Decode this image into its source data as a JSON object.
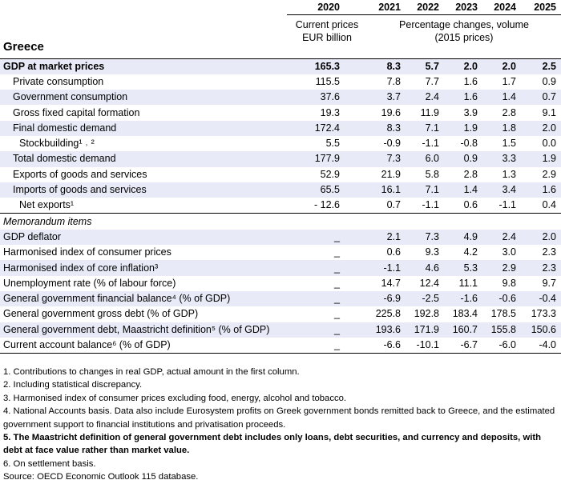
{
  "title": "Greece",
  "years": [
    "2020",
    "2021",
    "2022",
    "2023",
    "2024",
    "2025"
  ],
  "header": {
    "current_prices": "Current prices EUR billion",
    "pct_changes": "Percentage changes, volume (2015 prices)"
  },
  "rows": [
    {
      "label": "GDP at market prices",
      "values": [
        "165.3",
        "8.3",
        "5.7",
        "2.0",
        "2.0",
        "2.5"
      ]
    },
    {
      "label": "Private consumption",
      "values": [
        "115.5",
        "7.8",
        "7.7",
        "1.6",
        "1.7",
        "0.9"
      ]
    },
    {
      "label": "Government consumption",
      "values": [
        "37.6",
        "3.7",
        "2.4",
        "1.6",
        "1.4",
        "0.7"
      ]
    },
    {
      "label": "Gross fixed capital formation",
      "values": [
        "19.3",
        "19.6",
        "11.9",
        "3.9",
        "2.8",
        "9.1"
      ]
    },
    {
      "label": "Final domestic demand",
      "values": [
        "172.4",
        "8.3",
        "7.1",
        "1.9",
        "1.8",
        "2.0"
      ]
    },
    {
      "label": "Stockbuilding¹ ˒ ²",
      "values": [
        "5.5",
        "-0.9",
        "-1.1",
        "-0.8",
        "1.5",
        "0.0"
      ]
    },
    {
      "label": "Total domestic demand",
      "values": [
        "177.9",
        "7.3",
        "6.0",
        "0.9",
        "3.3",
        "1.9"
      ]
    },
    {
      "label": "Exports of goods and services",
      "values": [
        "52.9",
        "21.9",
        "5.8",
        "2.8",
        "1.3",
        "2.9"
      ]
    },
    {
      "label": "Imports of goods and services",
      "values": [
        "65.5",
        "16.1",
        "7.1",
        "1.4",
        "3.4",
        "1.6"
      ]
    },
    {
      "label": "Net exports¹",
      "values": [
        "- 12.6",
        "0.7",
        "-1.1",
        "0.6",
        "-1.1",
        "0.4"
      ]
    }
  ],
  "memo_label": "Memorandum items",
  "memo_rows": [
    {
      "label": "GDP deflator",
      "values": [
        "_",
        "2.1",
        "7.3",
        "4.9",
        "2.4",
        "2.0"
      ]
    },
    {
      "label": "Harmonised index of consumer prices",
      "values": [
        "_",
        "0.6",
        "9.3",
        "4.2",
        "3.0",
        "2.3"
      ]
    },
    {
      "label": "Harmonised index of core inflation³",
      "values": [
        "_",
        "-1.1",
        "4.6",
        "5.3",
        "2.9",
        "2.3"
      ]
    },
    {
      "label": "Unemployment rate (% of labour force)",
      "values": [
        "_",
        "14.7",
        "12.4",
        "11.1",
        "9.8",
        "9.7"
      ]
    },
    {
      "label": "General government financial balance⁴ (% of GDP)",
      "values": [
        "_",
        "-6.9",
        "-2.5",
        "-1.6",
        "-0.6",
        "-0.4"
      ]
    },
    {
      "label": "General government gross debt (% of GDP)",
      "values": [
        "_",
        "225.8",
        "192.8",
        "183.4",
        "178.5",
        "173.3"
      ]
    },
    {
      "label": "General government debt, Maastricht definition⁵ (% of GDP)",
      "values": [
        "_",
        "193.6",
        "171.9",
        "160.7",
        "155.8",
        "150.6"
      ]
    },
    {
      "label": "Current account balance⁶ (% of GDP)",
      "values": [
        "_",
        "-6.6",
        "-10.1",
        "-6.7",
        "-6.0",
        "-4.0"
      ]
    }
  ],
  "notes": [
    "1. Contributions to changes in real GDP, actual amount in the first column.",
    "2. Including statistical discrepancy.",
    "3. Harmonised index of consumer prices excluding food, energy, alcohol and tobacco.",
    "4. National Accounts basis. Data also include Eurosystem profits on Greek government bonds remitted back to Greece, and the estimated government support to financial institutions and privatisation proceeds.",
    "5. The Maastricht definition of general government debt includes only loans, debt securities, and currency and deposits, with debt at face value rather than market value.",
    "6. On settlement basis.",
    "Source: OECD Economic Outlook 115 database."
  ]
}
